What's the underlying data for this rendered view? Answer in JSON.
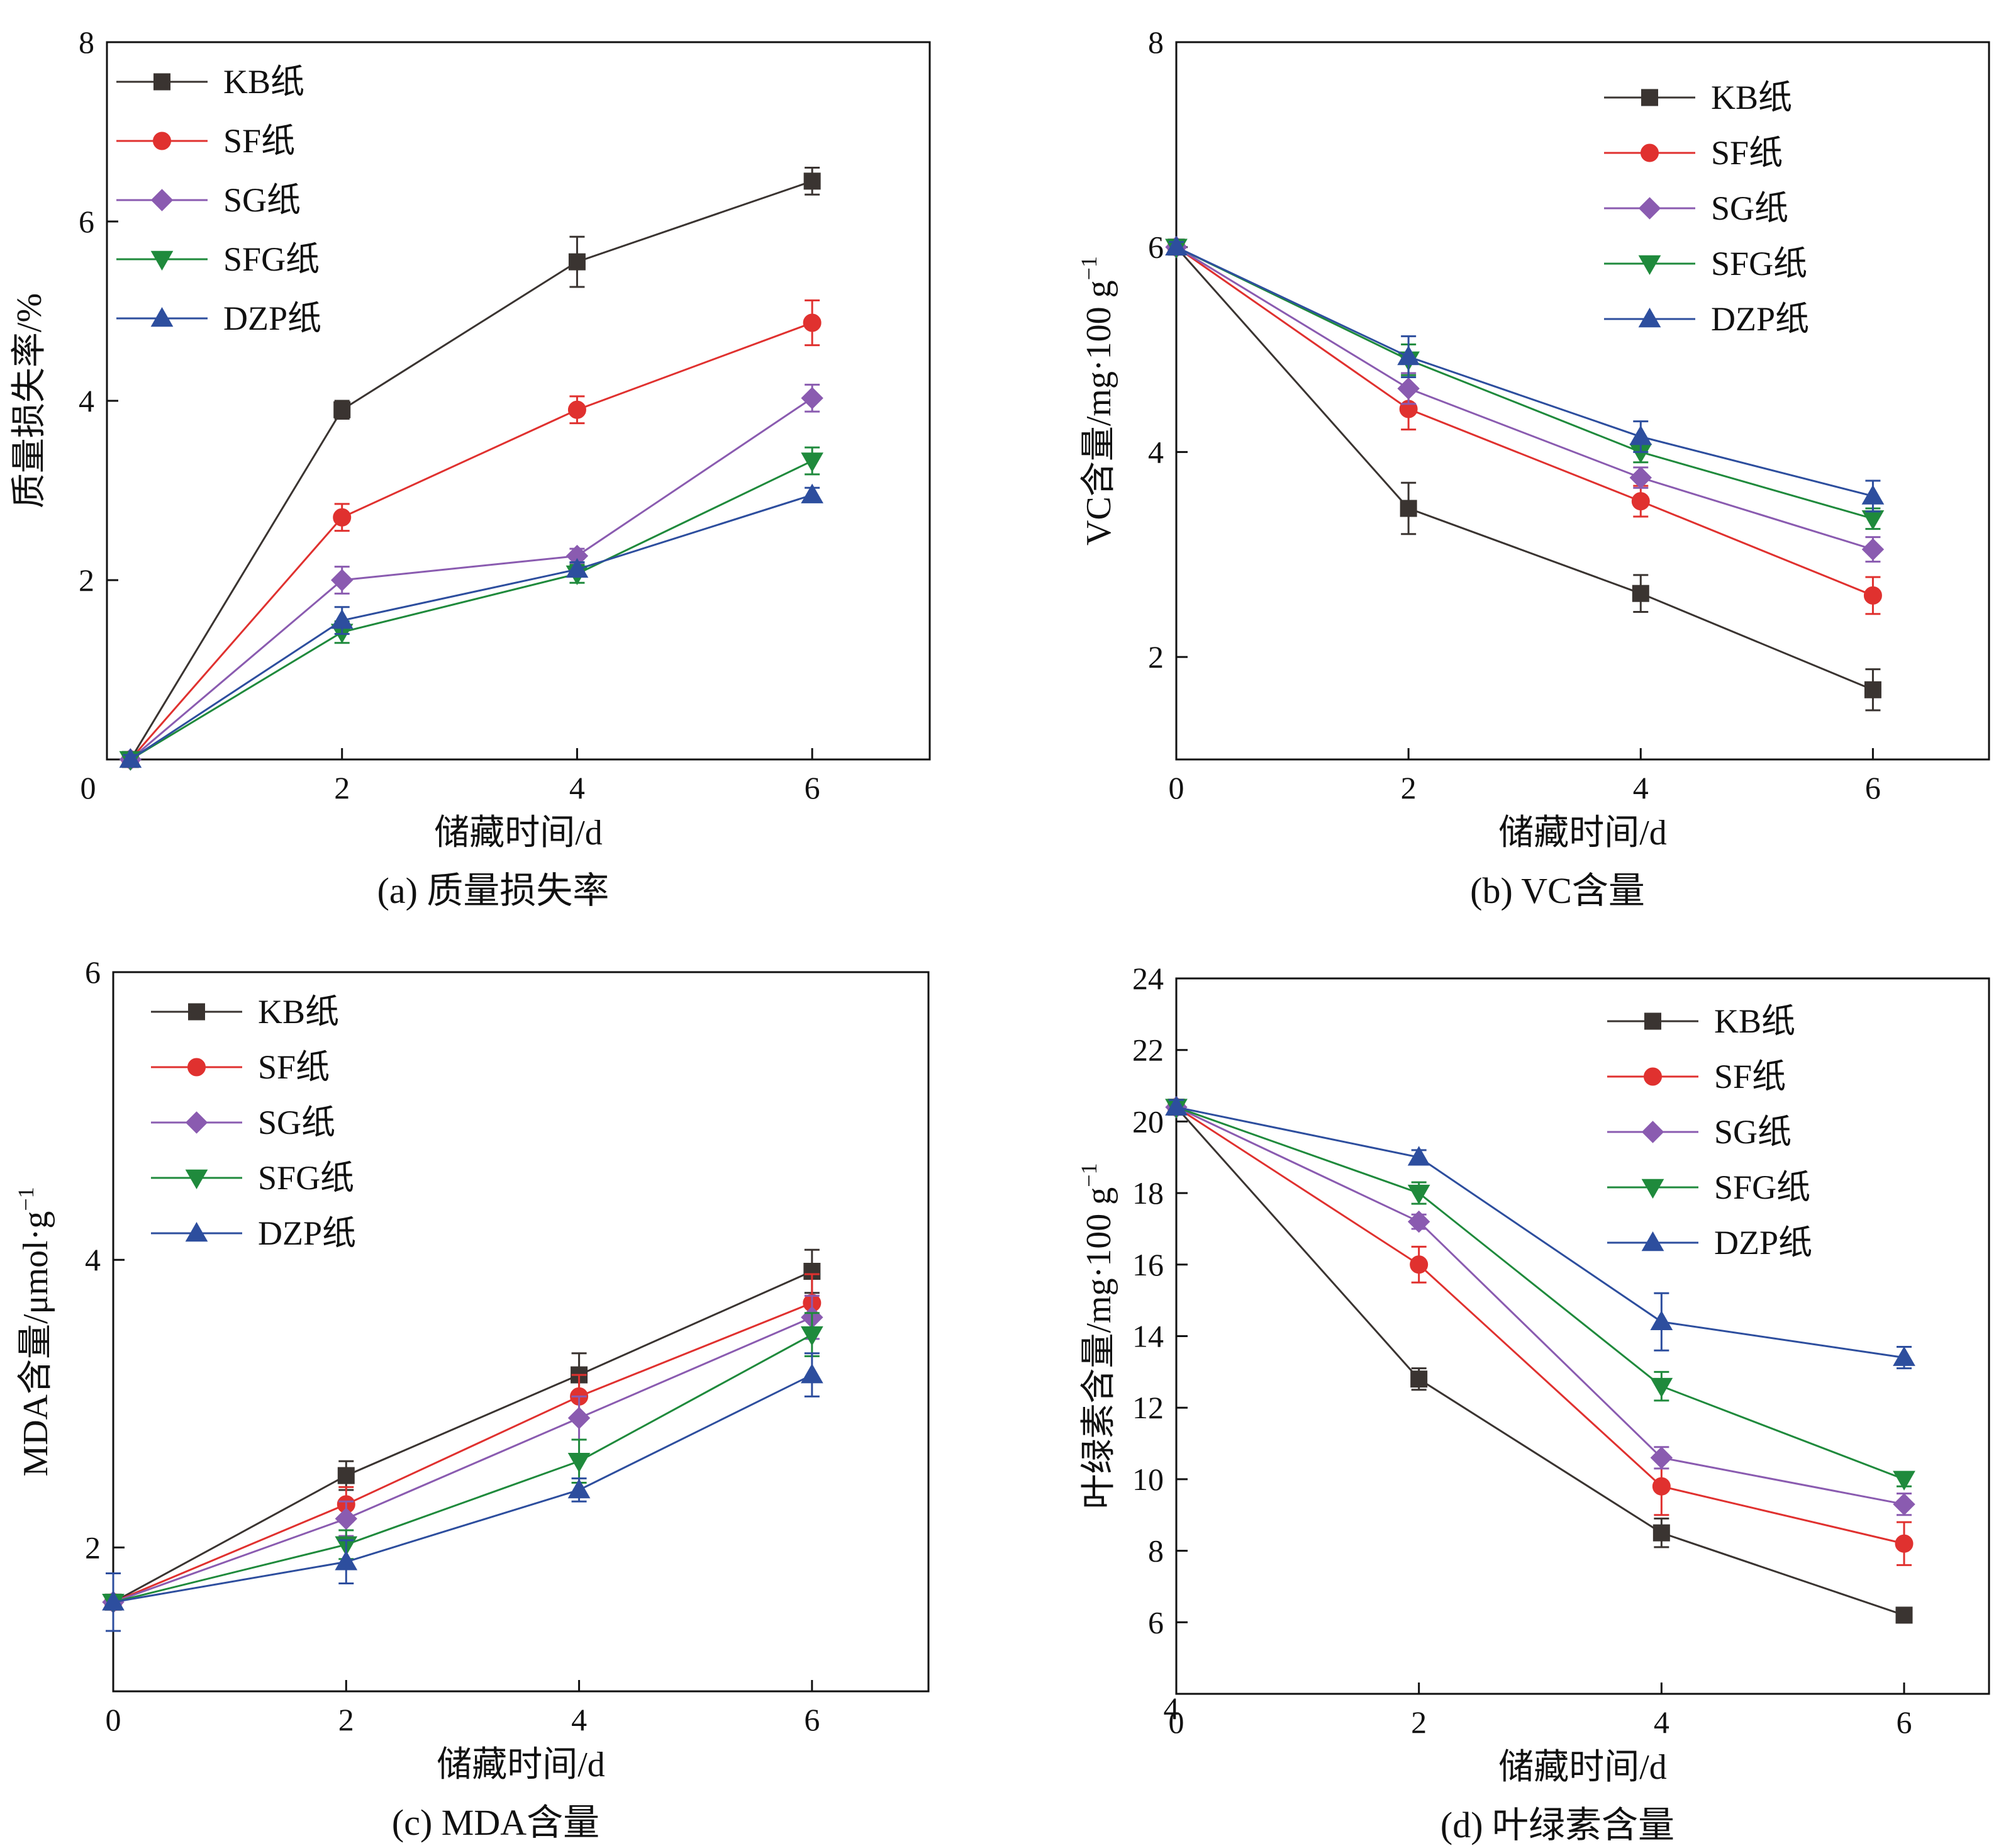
{
  "colors": {
    "KB纸": "#3a3431",
    "SF纸": "#e0312f",
    "SG纸": "#8a5bb0",
    "SFG纸": "#1f8a3c",
    "DZP纸": "#2d4e9e"
  },
  "markers": {
    "KB纸": "square",
    "SF纸": "circle",
    "SG纸": "diamond",
    "SFG纸": "triangle-down",
    "DZP纸": "triangle-up"
  },
  "chart_data": [
    {
      "id": "a",
      "type": "line",
      "caption": "(a) 质量损失率",
      "xlabel": "储藏时间/d",
      "ylabel": "质量损失率/%",
      "xlim": [
        0,
        7
      ],
      "ylim": [
        0,
        8
      ],
      "xticks": [
        0,
        2,
        4,
        6
      ],
      "yticks": [
        2,
        4,
        6,
        8
      ],
      "ytick_labels": [
        "2",
        "4",
        "6",
        "8"
      ],
      "origin_label": "0",
      "legend_position": "top-left",
      "x": [
        0.2,
        2,
        4,
        6
      ],
      "series": [
        {
          "name": "KB纸",
          "values": [
            0,
            3.9,
            5.55,
            6.45
          ],
          "errors": [
            0.05,
            0.1,
            0.28,
            0.15
          ]
        },
        {
          "name": "SF纸",
          "values": [
            0,
            2.7,
            3.9,
            4.87
          ],
          "errors": [
            0.05,
            0.15,
            0.15,
            0.25
          ]
        },
        {
          "name": "SG纸",
          "values": [
            0,
            2.0,
            2.27,
            4.03
          ],
          "errors": [
            0.05,
            0.15,
            0.08,
            0.15
          ]
        },
        {
          "name": "SFG纸",
          "values": [
            0,
            1.42,
            2.07,
            3.33
          ],
          "errors": [
            0.05,
            0.12,
            0.1,
            0.15
          ]
        },
        {
          "name": "DZP纸",
          "values": [
            0,
            1.55,
            2.12,
            2.95
          ],
          "errors": [
            0.05,
            0.15,
            0.08,
            0.08
          ]
        }
      ]
    },
    {
      "id": "b",
      "type": "line",
      "caption": "(b) VC含量",
      "xlabel": "储藏时间/d",
      "ylabel": "VC含量/mg·100 g",
      "ylabel_sup": "−1",
      "xlim": [
        0,
        7
      ],
      "ylim": [
        1,
        8
      ],
      "xticks": [
        0,
        2,
        4,
        6
      ],
      "yticks": [
        2,
        4,
        6,
        8
      ],
      "ytick_labels": [
        "2",
        "4",
        "6",
        "8"
      ],
      "legend_position": "top-right",
      "x": [
        0,
        2,
        4,
        6
      ],
      "series": [
        {
          "name": "KB纸",
          "values": [
            6.0,
            3.45,
            2.62,
            1.68
          ],
          "errors": [
            0.05,
            0.25,
            0.18,
            0.2
          ]
        },
        {
          "name": "SF纸",
          "values": [
            6.0,
            4.42,
            3.52,
            2.6
          ],
          "errors": [
            0.05,
            0.2,
            0.15,
            0.18
          ]
        },
        {
          "name": "SG纸",
          "values": [
            6.0,
            4.62,
            3.75,
            3.05
          ],
          "errors": [
            0.05,
            0.15,
            0.1,
            0.12
          ]
        },
        {
          "name": "SFG纸",
          "values": [
            6.0,
            4.9,
            4.0,
            3.35
          ],
          "errors": [
            0.05,
            0.15,
            0.1,
            0.1
          ]
        },
        {
          "name": "DZP纸",
          "values": [
            6.0,
            4.93,
            4.15,
            3.57
          ],
          "errors": [
            0.05,
            0.2,
            0.15,
            0.15
          ]
        }
      ]
    },
    {
      "id": "c",
      "type": "line",
      "caption": "(c) MDA含量",
      "xlabel": "储藏时间/d",
      "ylabel": "MDA含量/μmol·g",
      "ylabel_sup": "−1",
      "xlim": [
        0,
        7
      ],
      "ylim": [
        1,
        6
      ],
      "xticks": [
        0,
        2,
        4,
        6
      ],
      "yticks": [
        2,
        4,
        6
      ],
      "ytick_labels": [
        "2",
        "4",
        "6"
      ],
      "legend_position": "top-left",
      "x": [
        0,
        2,
        4,
        6
      ],
      "series": [
        {
          "name": "KB纸",
          "values": [
            1.62,
            2.5,
            3.2,
            3.92
          ],
          "errors": [
            0.05,
            0.1,
            0.15,
            0.15
          ]
        },
        {
          "name": "SF纸",
          "values": [
            1.62,
            2.3,
            3.05,
            3.7
          ],
          "errors": [
            0.05,
            0.12,
            0.15,
            0.2
          ]
        },
        {
          "name": "SG纸",
          "values": [
            1.62,
            2.2,
            2.9,
            3.6
          ],
          "errors": [
            0.05,
            0.12,
            0.15,
            0.15
          ]
        },
        {
          "name": "SFG纸",
          "values": [
            1.62,
            2.02,
            2.6,
            3.48
          ],
          "errors": [
            0.05,
            0.1,
            0.15,
            0.15
          ]
        },
        {
          "name": "DZP纸",
          "values": [
            1.62,
            1.9,
            2.4,
            3.2
          ],
          "errors": [
            0.2,
            0.15,
            0.08,
            0.15
          ]
        }
      ]
    },
    {
      "id": "d",
      "type": "line",
      "caption": "(d) 叶绿素含量",
      "xlabel": "储藏时间/d",
      "ylabel": "叶绿素含量/mg·100 g",
      "ylabel_sup": "−1",
      "xlim": [
        0,
        6.7
      ],
      "ylim": [
        4,
        24
      ],
      "xticks": [
        0,
        2,
        4,
        6
      ],
      "yticks": [
        6,
        8,
        10,
        12,
        14,
        16,
        18,
        20,
        22,
        24
      ],
      "ytick_labels": [
        "6",
        "8",
        "10",
        "12",
        "14",
        "16",
        "18",
        "20",
        "22",
        "24"
      ],
      "origin_label": "4",
      "legend_position": "top-right",
      "x": [
        0,
        2,
        4,
        6
      ],
      "series": [
        {
          "name": "KB纸",
          "values": [
            20.4,
            12.8,
            8.5,
            6.2
          ],
          "errors": [
            0.2,
            0.3,
            0.4,
            0.2
          ]
        },
        {
          "name": "SF纸",
          "values": [
            20.4,
            16.0,
            9.8,
            8.2
          ],
          "errors": [
            0.2,
            0.5,
            0.8,
            0.6
          ]
        },
        {
          "name": "SG纸",
          "values": [
            20.4,
            17.2,
            10.6,
            9.3
          ],
          "errors": [
            0.2,
            0.2,
            0.3,
            0.3
          ]
        },
        {
          "name": "SFG纸",
          "values": [
            20.4,
            18.0,
            12.6,
            10.0
          ],
          "errors": [
            0.2,
            0.3,
            0.4,
            0.2
          ]
        },
        {
          "name": "DZP纸",
          "values": [
            20.4,
            19.0,
            14.4,
            13.4
          ],
          "errors": [
            0.2,
            0.2,
            0.8,
            0.3
          ]
        }
      ]
    }
  ]
}
